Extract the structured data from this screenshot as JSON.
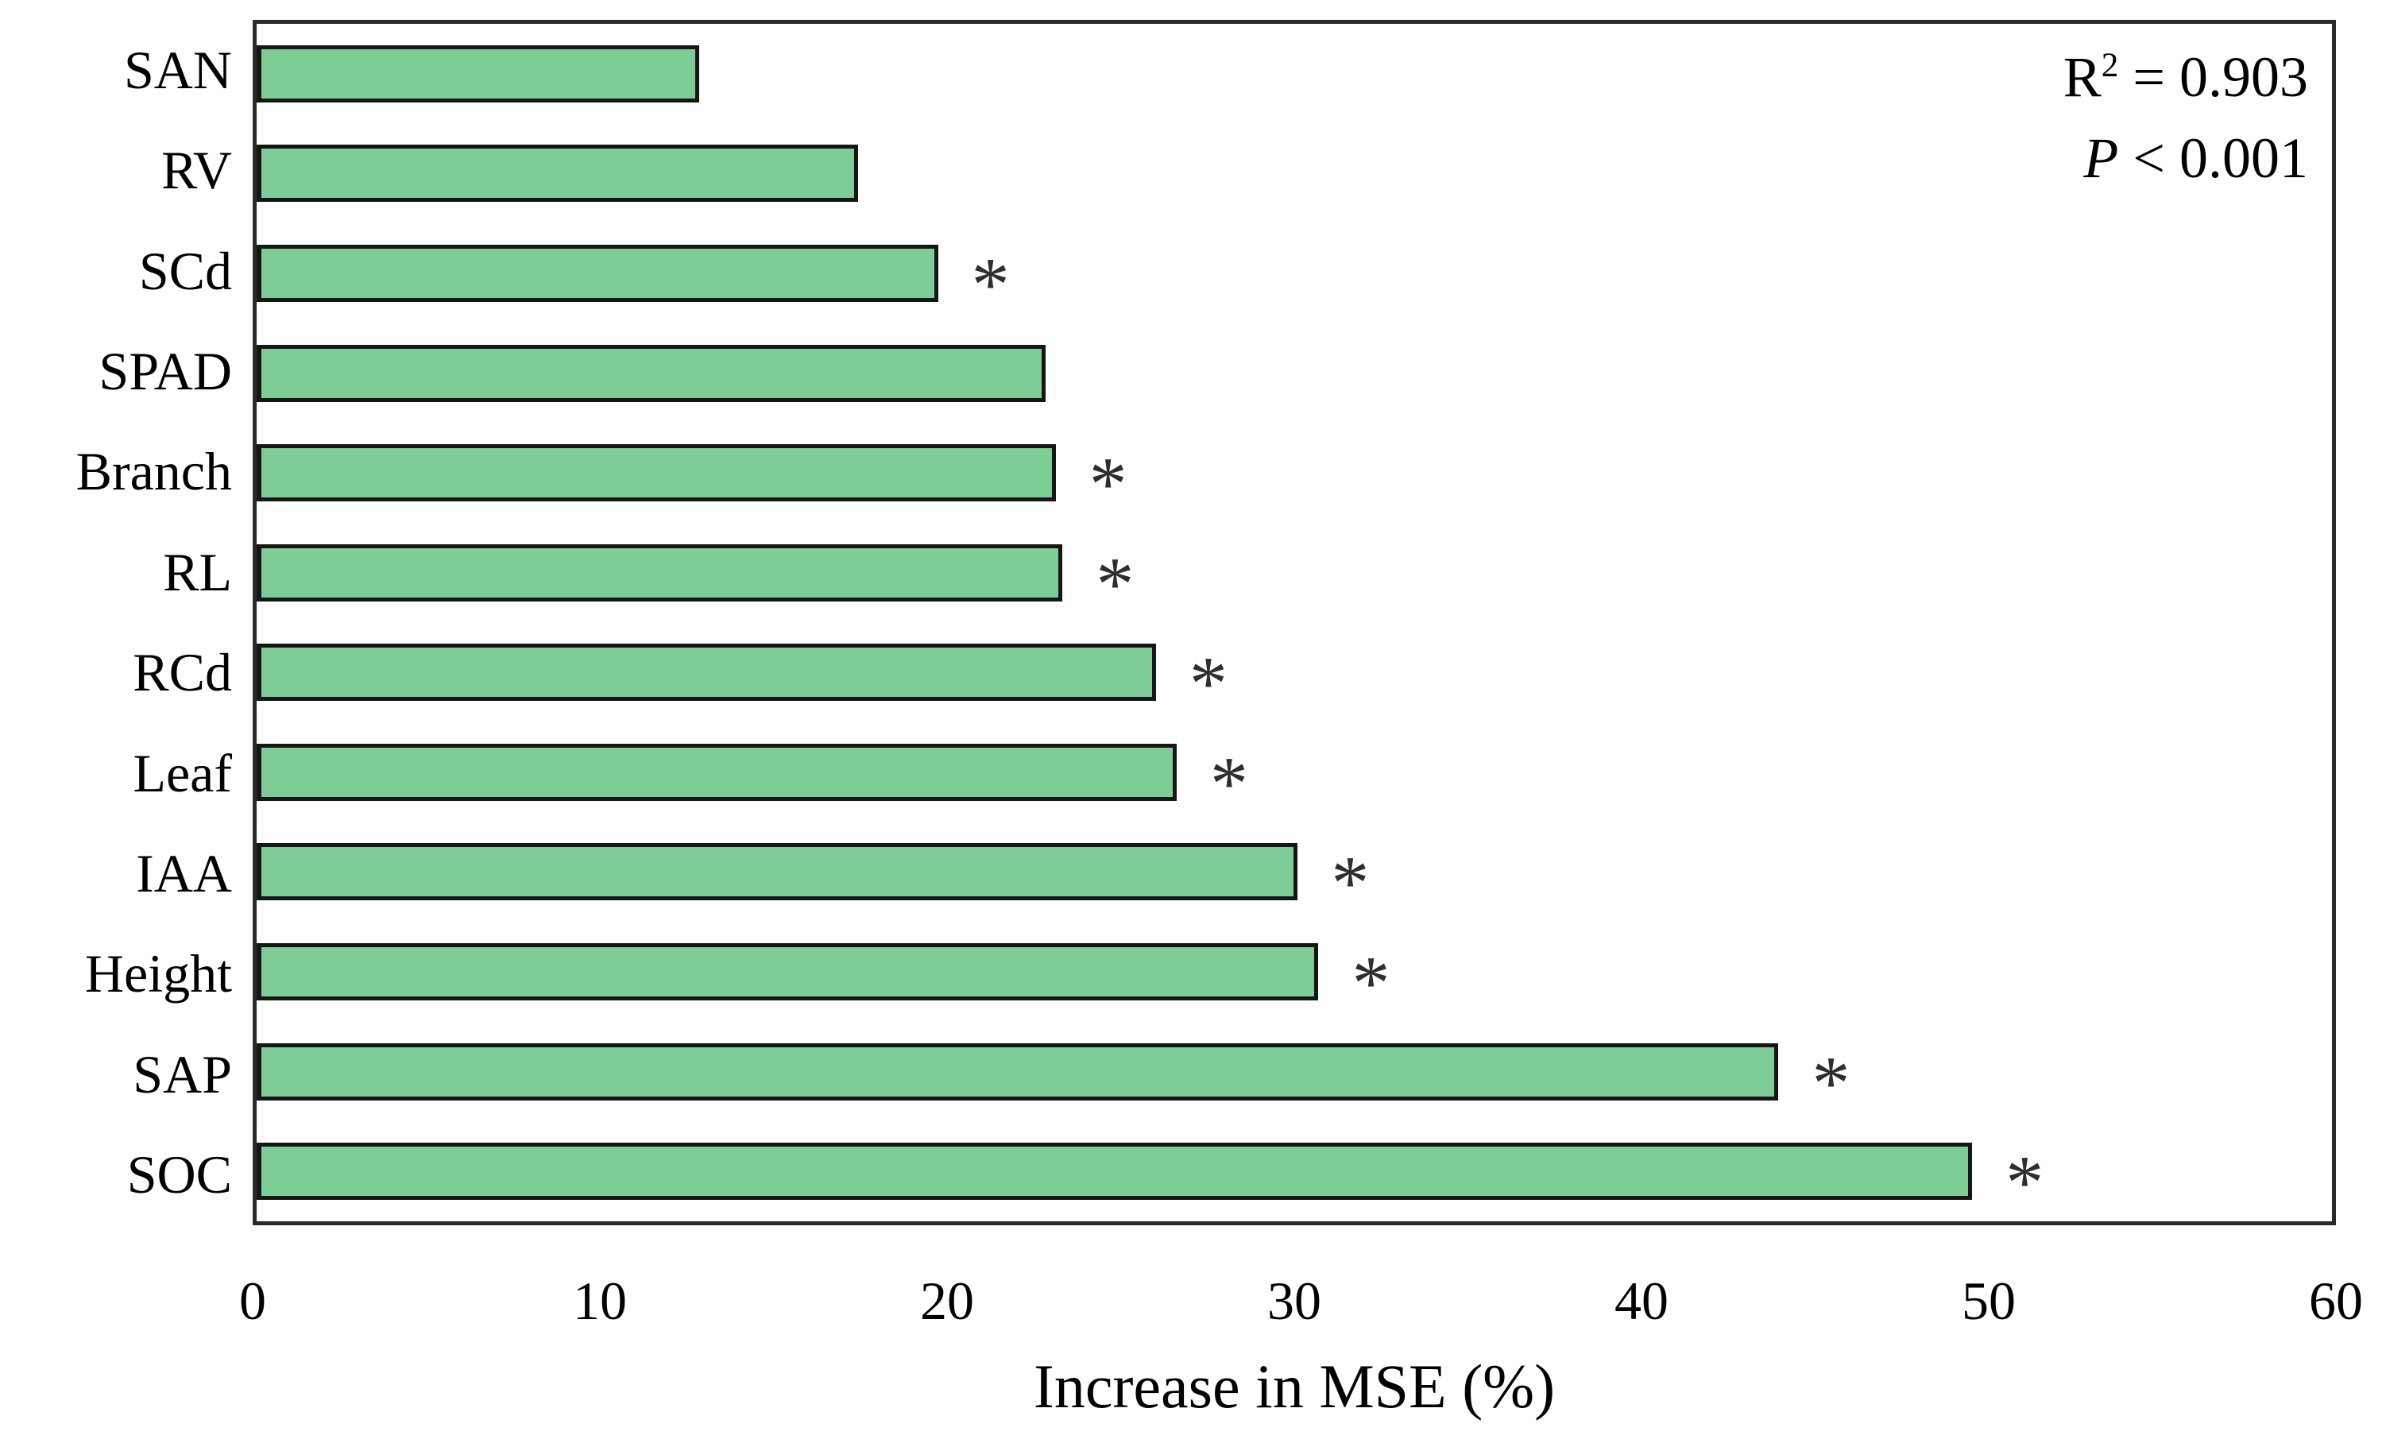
{
  "chart_data": {
    "type": "bar",
    "orientation": "horizontal",
    "xlabel": "Increase in MSE (%)",
    "xlim": [
      0,
      60
    ],
    "xticks": [
      0,
      10,
      20,
      30,
      40,
      50,
      60
    ],
    "grid": false,
    "legend_position": "none",
    "bar_color": "#7ECD97",
    "bar_edge_color": "#161616",
    "significance_marker": "*",
    "categories": [
      "SAN",
      "RV",
      "SCd",
      "SPAD",
      "Branch",
      "RL",
      "RCd",
      "Leaf",
      "IAA",
      "Height",
      "SAP",
      "SOC"
    ],
    "values": [
      12.8,
      17.4,
      19.7,
      22.8,
      23.1,
      23.3,
      26.0,
      26.6,
      30.1,
      30.7,
      44.0,
      49.6
    ],
    "significant": [
      false,
      false,
      true,
      false,
      true,
      true,
      true,
      true,
      true,
      true,
      true,
      true
    ],
    "annotation": {
      "r2_base": "R",
      "r2_sup": "2",
      "r2_rest": " = 0.903",
      "p_var": "P",
      "p_rest": " < 0.001"
    }
  }
}
